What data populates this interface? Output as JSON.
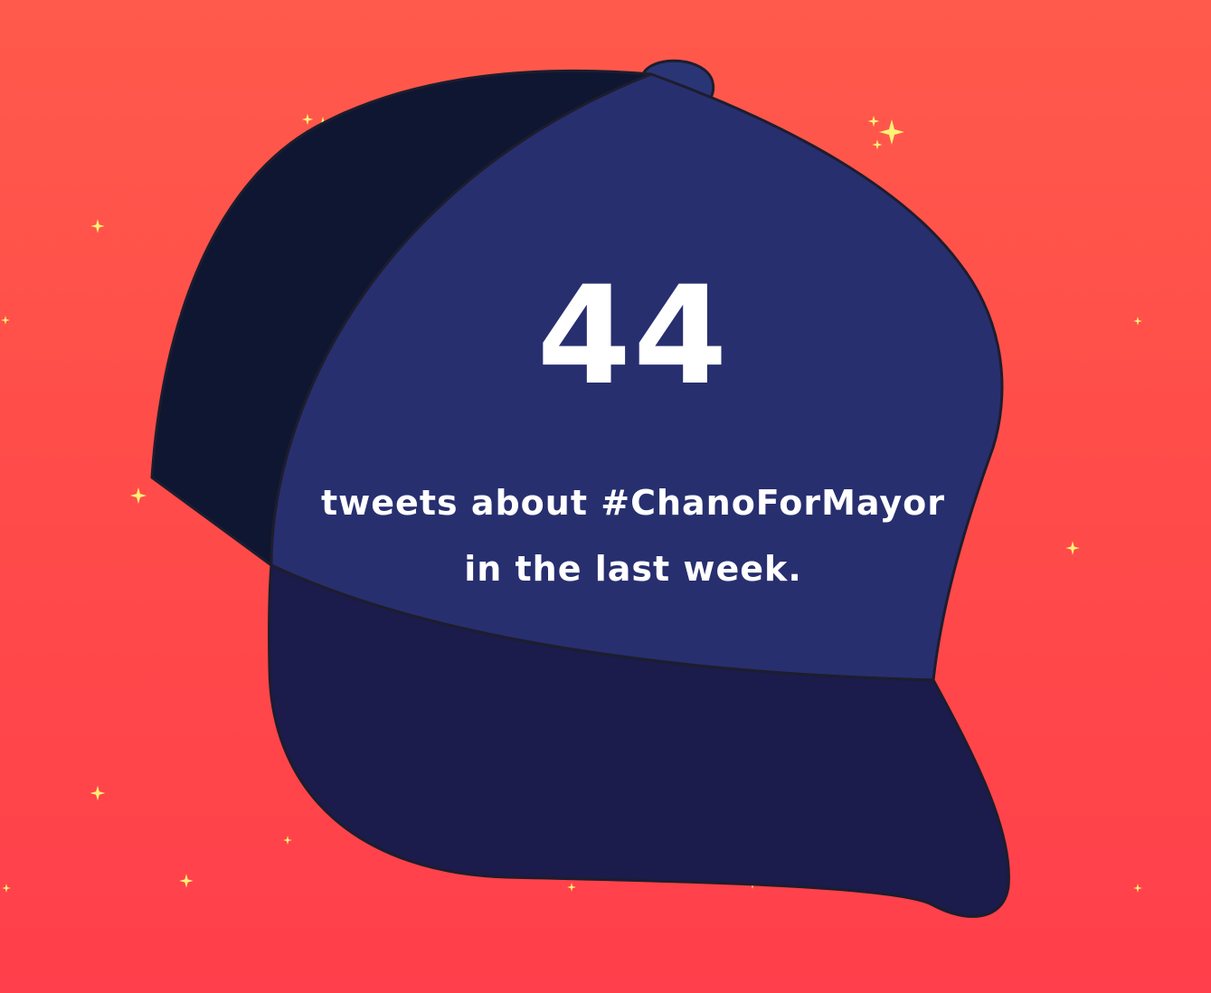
{
  "colors": {
    "background_top": "#ff5a4b",
    "background_bottom": "#ff3f4b",
    "cap_crown": "#272f6f",
    "cap_back_panel": "#0f1631",
    "cap_brim": "#1b1b4c",
    "cap_button": "#2a3575",
    "cap_outline": "#1d1d2e",
    "sparkle": "#fff176",
    "text": "#ffffff"
  },
  "stat": {
    "count": "44",
    "caption_line1": "tweets about #ChanoForMayor",
    "caption_line2": "in the last week."
  },
  "decorations": {
    "cap_icon": "baseball-cap-icon",
    "sparkle_icon": "sparkle-icon"
  }
}
